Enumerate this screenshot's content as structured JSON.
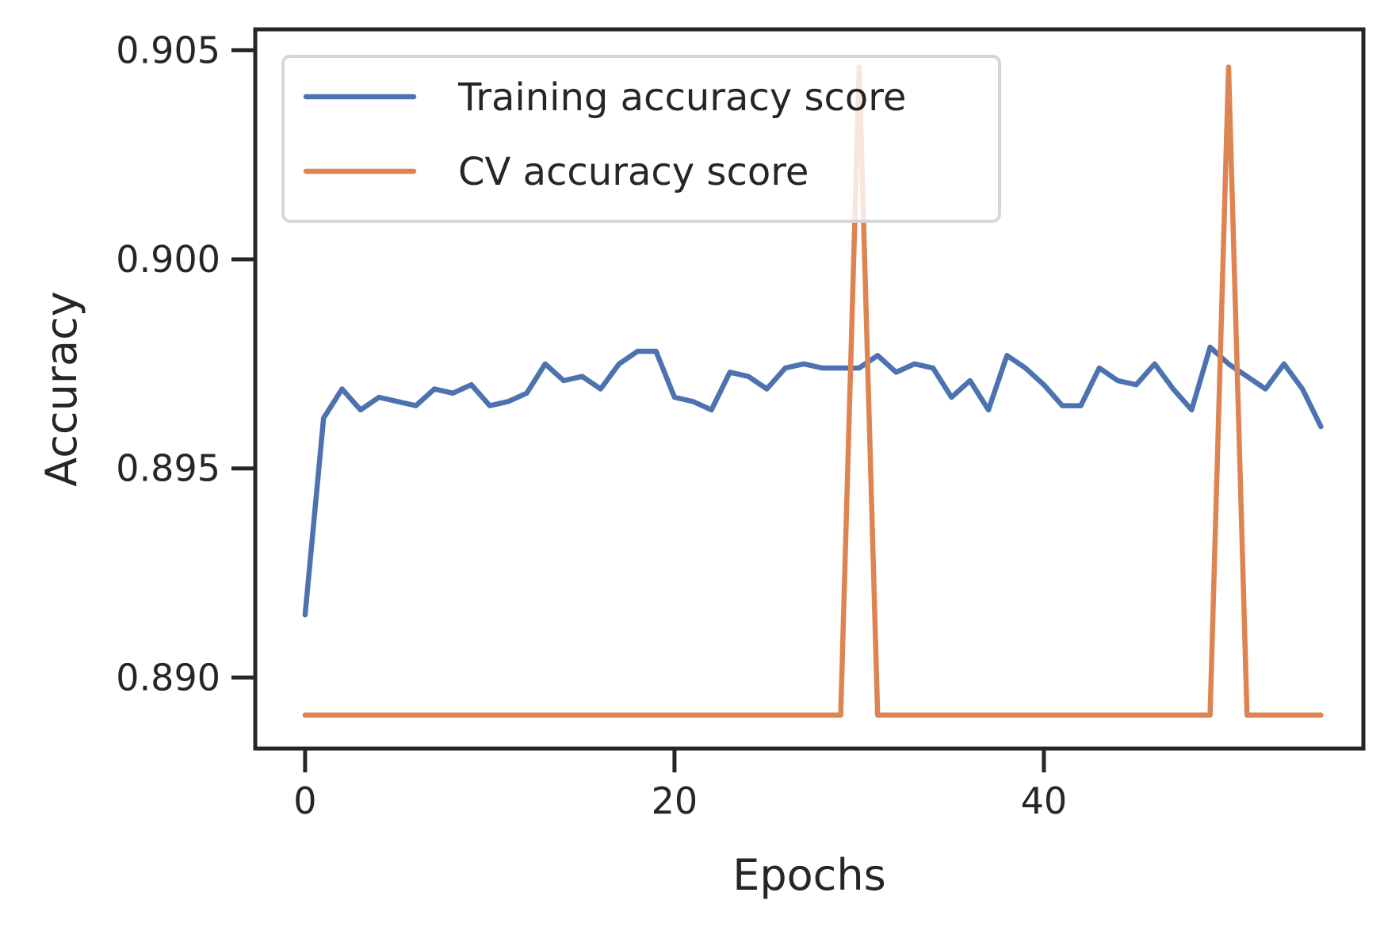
{
  "chart_data": {
    "type": "line",
    "title": "",
    "xlabel": "Epochs",
    "ylabel": "Accuracy",
    "xlim": [
      -2.7,
      57.3
    ],
    "ylim": [
      0.8883,
      0.9055
    ],
    "xticks": [
      0,
      20,
      40
    ],
    "xtick_labels": [
      "0",
      "20",
      "40"
    ],
    "yticks": [
      0.89,
      0.895,
      0.9,
      0.905
    ],
    "ytick_labels": [
      "0.890",
      "0.895",
      "0.900",
      "0.905"
    ],
    "grid": false,
    "legend": {
      "location": "upper-left",
      "entries": [
        "Training accuracy score",
        "CV accuracy score"
      ]
    },
    "x": [
      0,
      1,
      2,
      3,
      4,
      5,
      6,
      7,
      8,
      9,
      10,
      11,
      12,
      13,
      14,
      15,
      16,
      17,
      18,
      19,
      20,
      21,
      22,
      23,
      24,
      25,
      26,
      27,
      28,
      29,
      30,
      31,
      32,
      33,
      34,
      35,
      36,
      37,
      38,
      39,
      40,
      41,
      42,
      43,
      44,
      45,
      46,
      47,
      48,
      49,
      50,
      51,
      52,
      53,
      54,
      55
    ],
    "series": [
      {
        "name": "Training accuracy score",
        "color": "#4c72b0",
        "values": [
          0.8915,
          0.8962,
          0.8969,
          0.8964,
          0.8967,
          0.8966,
          0.8965,
          0.8969,
          0.8968,
          0.897,
          0.8965,
          0.8966,
          0.8968,
          0.8975,
          0.8971,
          0.8972,
          0.8969,
          0.8975,
          0.8978,
          0.8978,
          0.8967,
          0.8966,
          0.8964,
          0.8973,
          0.8972,
          0.8969,
          0.8974,
          0.8975,
          0.8974,
          0.8974,
          0.8974,
          0.8977,
          0.8973,
          0.8975,
          0.8974,
          0.8967,
          0.8971,
          0.8964,
          0.8977,
          0.8974,
          0.897,
          0.8965,
          0.8965,
          0.8974,
          0.8971,
          0.897,
          0.8975,
          0.8969,
          0.8964,
          0.8979,
          0.8975,
          0.8972,
          0.8969,
          0.8975,
          0.8969,
          0.896
        ]
      },
      {
        "name": "CV accuracy score",
        "color": "#dd8452",
        "values": [
          0.8891,
          0.8891,
          0.8891,
          0.8891,
          0.8891,
          0.8891,
          0.8891,
          0.8891,
          0.8891,
          0.8891,
          0.8891,
          0.8891,
          0.8891,
          0.8891,
          0.8891,
          0.8891,
          0.8891,
          0.8891,
          0.8891,
          0.8891,
          0.8891,
          0.8891,
          0.8891,
          0.8891,
          0.8891,
          0.8891,
          0.8891,
          0.8891,
          0.8891,
          0.8891,
          0.9046,
          0.8891,
          0.8891,
          0.8891,
          0.8891,
          0.8891,
          0.8891,
          0.8891,
          0.8891,
          0.8891,
          0.8891,
          0.8891,
          0.8891,
          0.8891,
          0.8891,
          0.8891,
          0.8891,
          0.8891,
          0.8891,
          0.8891,
          0.9046,
          0.8891,
          0.8891,
          0.8891,
          0.8891,
          0.8891
        ]
      }
    ]
  }
}
